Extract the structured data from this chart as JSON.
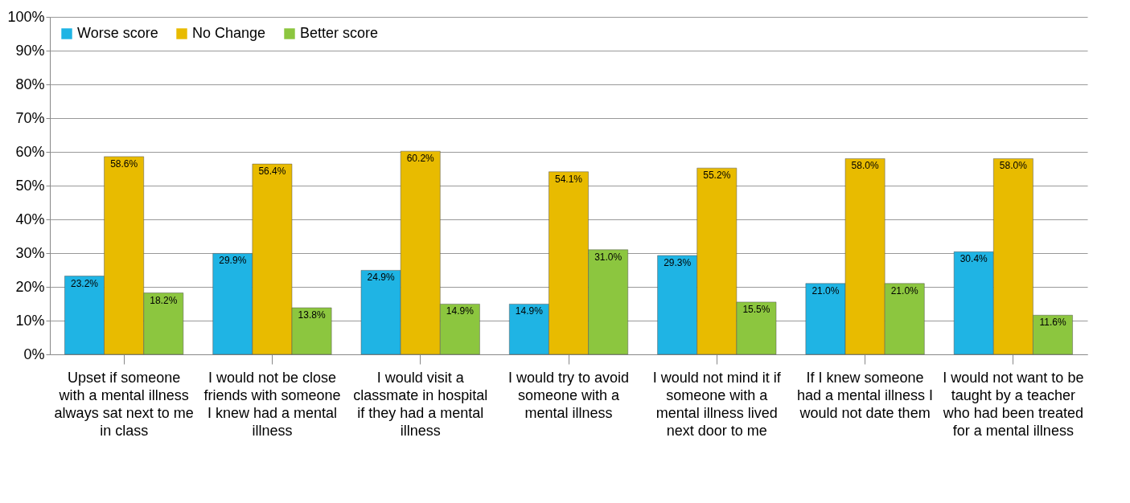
{
  "chart_data": {
    "type": "bar",
    "categories": [
      "Upset if someone with a mental illness always sat next to me in class",
      "I would not be close friends with someone I knew had a mental illness",
      "I would visit a classmate in hospital if they had a mental illness",
      "I would try to avoid someone with a mental illness",
      "I would not mind it if someone with a mental illness lived next door to me",
      "If I knew someone had a mental illness I would not date them",
      "I would not want to be taught by a teacher who had been treated for a mental illness"
    ],
    "series": [
      {
        "name": "Worse score",
        "color": "#1fb4e4",
        "values": [
          23.2,
          29.9,
          24.9,
          14.9,
          29.3,
          21.0,
          30.4
        ],
        "value_labels": [
          "23.2%",
          "29.9%",
          "24.9%",
          "14.9%",
          "29.3%",
          "21.0%",
          "30.4%"
        ]
      },
      {
        "name": "No Change",
        "color": "#e8bb00",
        "values": [
          58.6,
          56.4,
          60.2,
          54.1,
          55.2,
          58.0,
          58.0
        ],
        "value_labels": [
          "58.6%",
          "56.4%",
          "60.2%",
          "54.1%",
          "55.2%",
          "58.0%",
          "58.0%"
        ]
      },
      {
        "name": "Better score",
        "color": "#8cc63f",
        "values": [
          18.2,
          13.8,
          14.9,
          31.0,
          15.5,
          21.0,
          11.6
        ],
        "value_labels": [
          "18.2%",
          "13.8%",
          "14.9%",
          "31.0%",
          "15.5%",
          "21.0%",
          "11.6%"
        ]
      }
    ],
    "ylim": [
      0,
      100
    ],
    "yticks": [
      {
        "value": 0,
        "label": "0%"
      },
      {
        "value": 10,
        "label": "10%"
      },
      {
        "value": 20,
        "label": "20%"
      },
      {
        "value": 30,
        "label": "30%"
      },
      {
        "value": 40,
        "label": "40%"
      },
      {
        "value": 50,
        "label": "50%"
      },
      {
        "value": 60,
        "label": "60%"
      },
      {
        "value": 70,
        "label": "70%"
      },
      {
        "value": 80,
        "label": "80%"
      },
      {
        "value": 90,
        "label": "90%"
      },
      {
        "value": 100,
        "label": "100%"
      }
    ],
    "grid": "y",
    "legend": "top left"
  }
}
